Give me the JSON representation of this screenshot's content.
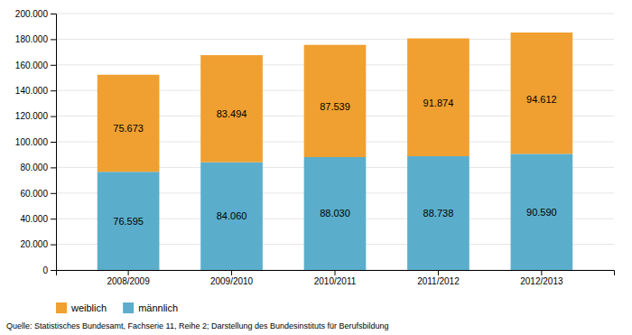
{
  "chart_data": {
    "type": "bar",
    "stacked": true,
    "categories": [
      "2008/2009",
      "2009/2010",
      "2010/2011",
      "2011/2012",
      "2012/2013"
    ],
    "series": [
      {
        "name": "männlich",
        "color": "#5baecb",
        "values": [
          76595,
          84060,
          88030,
          88738,
          90590
        ],
        "value_labels": [
          "76.595",
          "84.060",
          "88.030",
          "88.738",
          "90.590"
        ]
      },
      {
        "name": "weiblich",
        "color": "#f0a030",
        "values": [
          75673,
          83494,
          87539,
          91874,
          94612
        ],
        "value_labels": [
          "75.673",
          "83.494",
          "87.539",
          "91.874",
          "94.612"
        ]
      }
    ],
    "ylim": [
      0,
      200000
    ],
    "yticks": [
      0,
      {
        "value": 20000,
        "label": "20.000"
      },
      {
        "value": 40000,
        "label": "40.000"
      },
      {
        "value": 60000,
        "label": "60.000"
      },
      {
        "value": 80000,
        "label": "80.000"
      },
      {
        "value": 100000,
        "label": "100.000"
      },
      {
        "value": 120000,
        "label": "120.000"
      },
      {
        "value": 140000,
        "label": "140.000"
      },
      {
        "value": 160000,
        "label": "160.000"
      },
      {
        "value": 180000,
        "label": "180.000"
      },
      {
        "value": 200000,
        "label": "200.000"
      }
    ],
    "grid": true,
    "legend": "bottom",
    "data_labels": true,
    "annotations": [
      "Quelle: Statistisches Bundesamt, Fachserie 11, Reihe 2; Darstellung des Bundesinstituts für Berufsbildung"
    ]
  }
}
